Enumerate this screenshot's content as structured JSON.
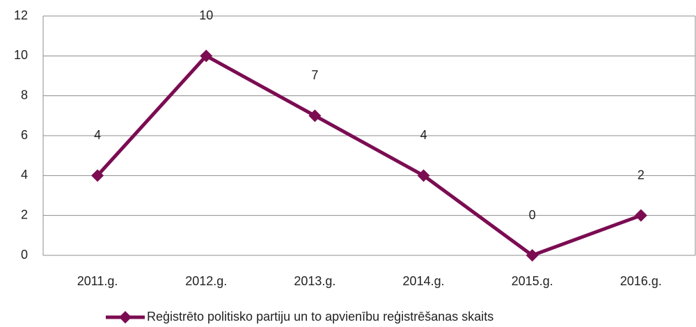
{
  "chart_data": {
    "type": "line",
    "categories": [
      "2011.g.",
      "2012.g.",
      "2013.g.",
      "2014.g.",
      "2015.g.",
      "2016.g."
    ],
    "series": [
      {
        "name": "Reģistrēto politisko partiju un to apvienību reģistrēšanas skaits",
        "color": "#7b0c52",
        "values": [
          4,
          10,
          7,
          4,
          0,
          2
        ]
      }
    ],
    "ylim": [
      0,
      12
    ],
    "yticks": [
      0,
      2,
      4,
      6,
      8,
      10,
      12
    ],
    "grid": true,
    "legend": "bottom"
  }
}
